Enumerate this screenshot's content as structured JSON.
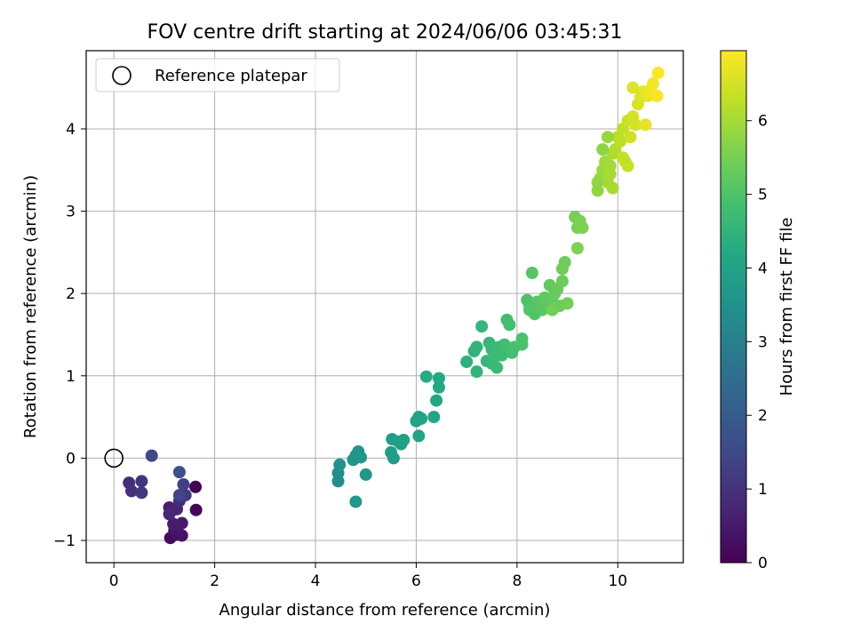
{
  "chart_data": {
    "type": "scatter",
    "title": "FOV centre drift starting at 2024/06/06 03:45:31",
    "xlabel": "Angular distance from reference (arcmin)",
    "ylabel": "Rotation from reference (arcmin)",
    "xlim": [
      -0.55,
      11.3
    ],
    "ylim": [
      -1.27,
      4.95
    ],
    "xticks": [
      0,
      2,
      4,
      6,
      8,
      10
    ],
    "yticks": [
      -1,
      0,
      1,
      2,
      3,
      4
    ],
    "xtick_labels": [
      "0",
      "2",
      "4",
      "6",
      "8",
      "10"
    ],
    "ytick_labels": [
      "−1",
      "0",
      "1",
      "2",
      "3",
      "4"
    ],
    "grid": true,
    "legend": {
      "position": "upper-left",
      "entries": [
        "Reference platepar"
      ]
    },
    "reference_point": {
      "x": 0,
      "y": 0,
      "label": "Reference platepar"
    },
    "colorbar": {
      "label": "Hours from first FF file",
      "colormap": "viridis",
      "range": [
        0,
        6.95
      ],
      "ticks": [
        0,
        1,
        2,
        3,
        4,
        5,
        6
      ],
      "tick_labels": [
        "0",
        "1",
        "2",
        "3",
        "4",
        "5",
        "6"
      ]
    },
    "series": [
      {
        "color_by": "Hours from first FF file",
        "points": [
          [
            1.62,
            -0.35,
            0.05
          ],
          [
            1.63,
            -0.63,
            0.1
          ],
          [
            1.12,
            -0.97,
            0.2
          ],
          [
            1.25,
            -0.93,
            0.3
          ],
          [
            1.35,
            -0.94,
            0.35
          ],
          [
            1.2,
            -0.88,
            0.4
          ],
          [
            1.28,
            -0.82,
            0.45
          ],
          [
            1.35,
            -0.79,
            0.5
          ],
          [
            1.18,
            -0.8,
            0.55
          ],
          [
            1.1,
            -0.6,
            0.6
          ],
          [
            1.12,
            -0.65,
            0.65
          ],
          [
            1.25,
            -0.62,
            0.7
          ],
          [
            1.1,
            -0.68,
            0.75
          ],
          [
            1.3,
            -0.52,
            0.85
          ],
          [
            0.3,
            -0.3,
            0.9
          ],
          [
            0.35,
            -0.4,
            1.0
          ],
          [
            0.55,
            -0.28,
            1.05
          ],
          [
            0.55,
            -0.42,
            1.1
          ],
          [
            1.42,
            -0.45,
            1.2
          ],
          [
            1.38,
            -0.32,
            1.3
          ],
          [
            1.3,
            -0.45,
            1.4
          ],
          [
            0.75,
            0.03,
            1.5
          ],
          [
            1.3,
            -0.17,
            1.7
          ],
          [
            4.45,
            -0.28,
            3.4
          ],
          [
            4.45,
            -0.18,
            3.45
          ],
          [
            4.48,
            -0.08,
            3.5
          ],
          [
            4.75,
            -0.02,
            3.55
          ],
          [
            4.8,
            0.03,
            3.6
          ],
          [
            4.85,
            0.08,
            3.6
          ],
          [
            4.9,
            0.01,
            3.65
          ],
          [
            5.0,
            -0.2,
            3.65
          ],
          [
            4.8,
            -0.53,
            3.7
          ],
          [
            5.5,
            0.07,
            3.8
          ],
          [
            5.55,
            0.0,
            3.8
          ],
          [
            5.52,
            0.23,
            3.85
          ],
          [
            5.65,
            0.2,
            3.9
          ],
          [
            5.7,
            0.17,
            3.9
          ],
          [
            5.75,
            0.22,
            3.95
          ],
          [
            6.0,
            0.45,
            4.0
          ],
          [
            6.05,
            0.5,
            4.0
          ],
          [
            6.1,
            0.48,
            4.05
          ],
          [
            6.05,
            0.27,
            4.05
          ],
          [
            6.35,
            0.5,
            4.1
          ],
          [
            6.4,
            0.7,
            4.15
          ],
          [
            6.45,
            0.86,
            4.2
          ],
          [
            6.45,
            0.97,
            4.2
          ],
          [
            6.2,
            0.99,
            4.25
          ],
          [
            7.0,
            1.17,
            4.4
          ],
          [
            7.15,
            1.3,
            4.45
          ],
          [
            7.2,
            1.35,
            4.5
          ],
          [
            7.2,
            1.05,
            4.5
          ],
          [
            7.3,
            1.6,
            4.55
          ],
          [
            7.4,
            1.18,
            4.6
          ],
          [
            7.45,
            1.4,
            4.6
          ],
          [
            7.5,
            1.32,
            4.65
          ],
          [
            7.5,
            1.15,
            4.65
          ],
          [
            7.55,
            1.22,
            4.7
          ],
          [
            7.6,
            1.1,
            4.7
          ],
          [
            7.65,
            1.35,
            4.75
          ],
          [
            7.7,
            1.25,
            4.75
          ],
          [
            7.75,
            1.38,
            4.8
          ],
          [
            7.8,
            1.68,
            4.8
          ],
          [
            7.85,
            1.62,
            4.85
          ],
          [
            7.9,
            1.28,
            4.85
          ],
          [
            7.95,
            1.35,
            4.9
          ],
          [
            8.1,
            1.45,
            4.95
          ],
          [
            8.1,
            1.38,
            4.95
          ],
          [
            8.2,
            1.92,
            5.0
          ],
          [
            8.25,
            1.85,
            5.0
          ],
          [
            8.3,
            1.8,
            5.05
          ],
          [
            8.35,
            1.75,
            5.05
          ],
          [
            8.3,
            2.25,
            5.1
          ],
          [
            8.4,
            1.9,
            5.1
          ],
          [
            8.45,
            1.85,
            5.15
          ],
          [
            8.5,
            1.8,
            5.15
          ],
          [
            8.55,
            1.95,
            5.2
          ],
          [
            8.6,
            1.88,
            5.2
          ],
          [
            8.65,
            2.1,
            5.25
          ],
          [
            8.7,
            1.95,
            5.25
          ],
          [
            8.75,
            2.0,
            5.3
          ],
          [
            8.8,
            2.05,
            5.3
          ],
          [
            8.85,
            1.85,
            5.35
          ],
          [
            8.9,
            2.15,
            5.35
          ],
          [
            8.9,
            2.3,
            5.4
          ],
          [
            8.95,
            2.38,
            5.4
          ],
          [
            9.0,
            1.88,
            5.45
          ],
          [
            8.7,
            1.8,
            5.45
          ],
          [
            9.15,
            2.93,
            5.5
          ],
          [
            9.2,
            2.8,
            5.55
          ],
          [
            9.25,
            2.88,
            5.55
          ],
          [
            9.3,
            2.8,
            5.6
          ],
          [
            9.2,
            2.55,
            5.6
          ],
          [
            9.6,
            3.25,
            5.8
          ],
          [
            9.65,
            3.4,
            5.85
          ],
          [
            9.7,
            3.5,
            5.9
          ],
          [
            9.75,
            3.6,
            5.95
          ],
          [
            9.8,
            3.35,
            6.0
          ],
          [
            9.85,
            3.55,
            6.0
          ],
          [
            9.9,
            3.28,
            6.05
          ],
          [
            9.9,
            3.7,
            6.1
          ],
          [
            9.95,
            3.75,
            6.15
          ],
          [
            10.0,
            3.9,
            6.2
          ],
          [
            10.05,
            3.85,
            6.25
          ],
          [
            10.1,
            4.0,
            6.3
          ],
          [
            10.15,
            3.6,
            6.3
          ],
          [
            10.2,
            3.55,
            6.35
          ],
          [
            10.2,
            4.1,
            6.4
          ],
          [
            10.25,
            3.9,
            6.45
          ],
          [
            10.3,
            4.15,
            6.5
          ],
          [
            10.35,
            4.05,
            6.5
          ],
          [
            10.4,
            4.3,
            6.55
          ],
          [
            10.45,
            4.38,
            6.6
          ],
          [
            10.5,
            4.45,
            6.65
          ],
          [
            10.55,
            4.05,
            6.7
          ],
          [
            10.6,
            4.4,
            6.75
          ],
          [
            10.65,
            4.48,
            6.8
          ],
          [
            10.7,
            4.55,
            6.85
          ],
          [
            10.78,
            4.4,
            6.9
          ],
          [
            10.8,
            4.68,
            6.95
          ],
          [
            9.7,
            3.75,
            5.75
          ],
          [
            9.8,
            3.9,
            5.85
          ],
          [
            9.6,
            3.35,
            5.8
          ],
          [
            10.3,
            4.5,
            6.6
          ],
          [
            10.1,
            3.65,
            6.3
          ],
          [
            9.85,
            3.45,
            6.05
          ],
          [
            8.25,
            1.8,
            5.05
          ]
        ]
      }
    ]
  }
}
